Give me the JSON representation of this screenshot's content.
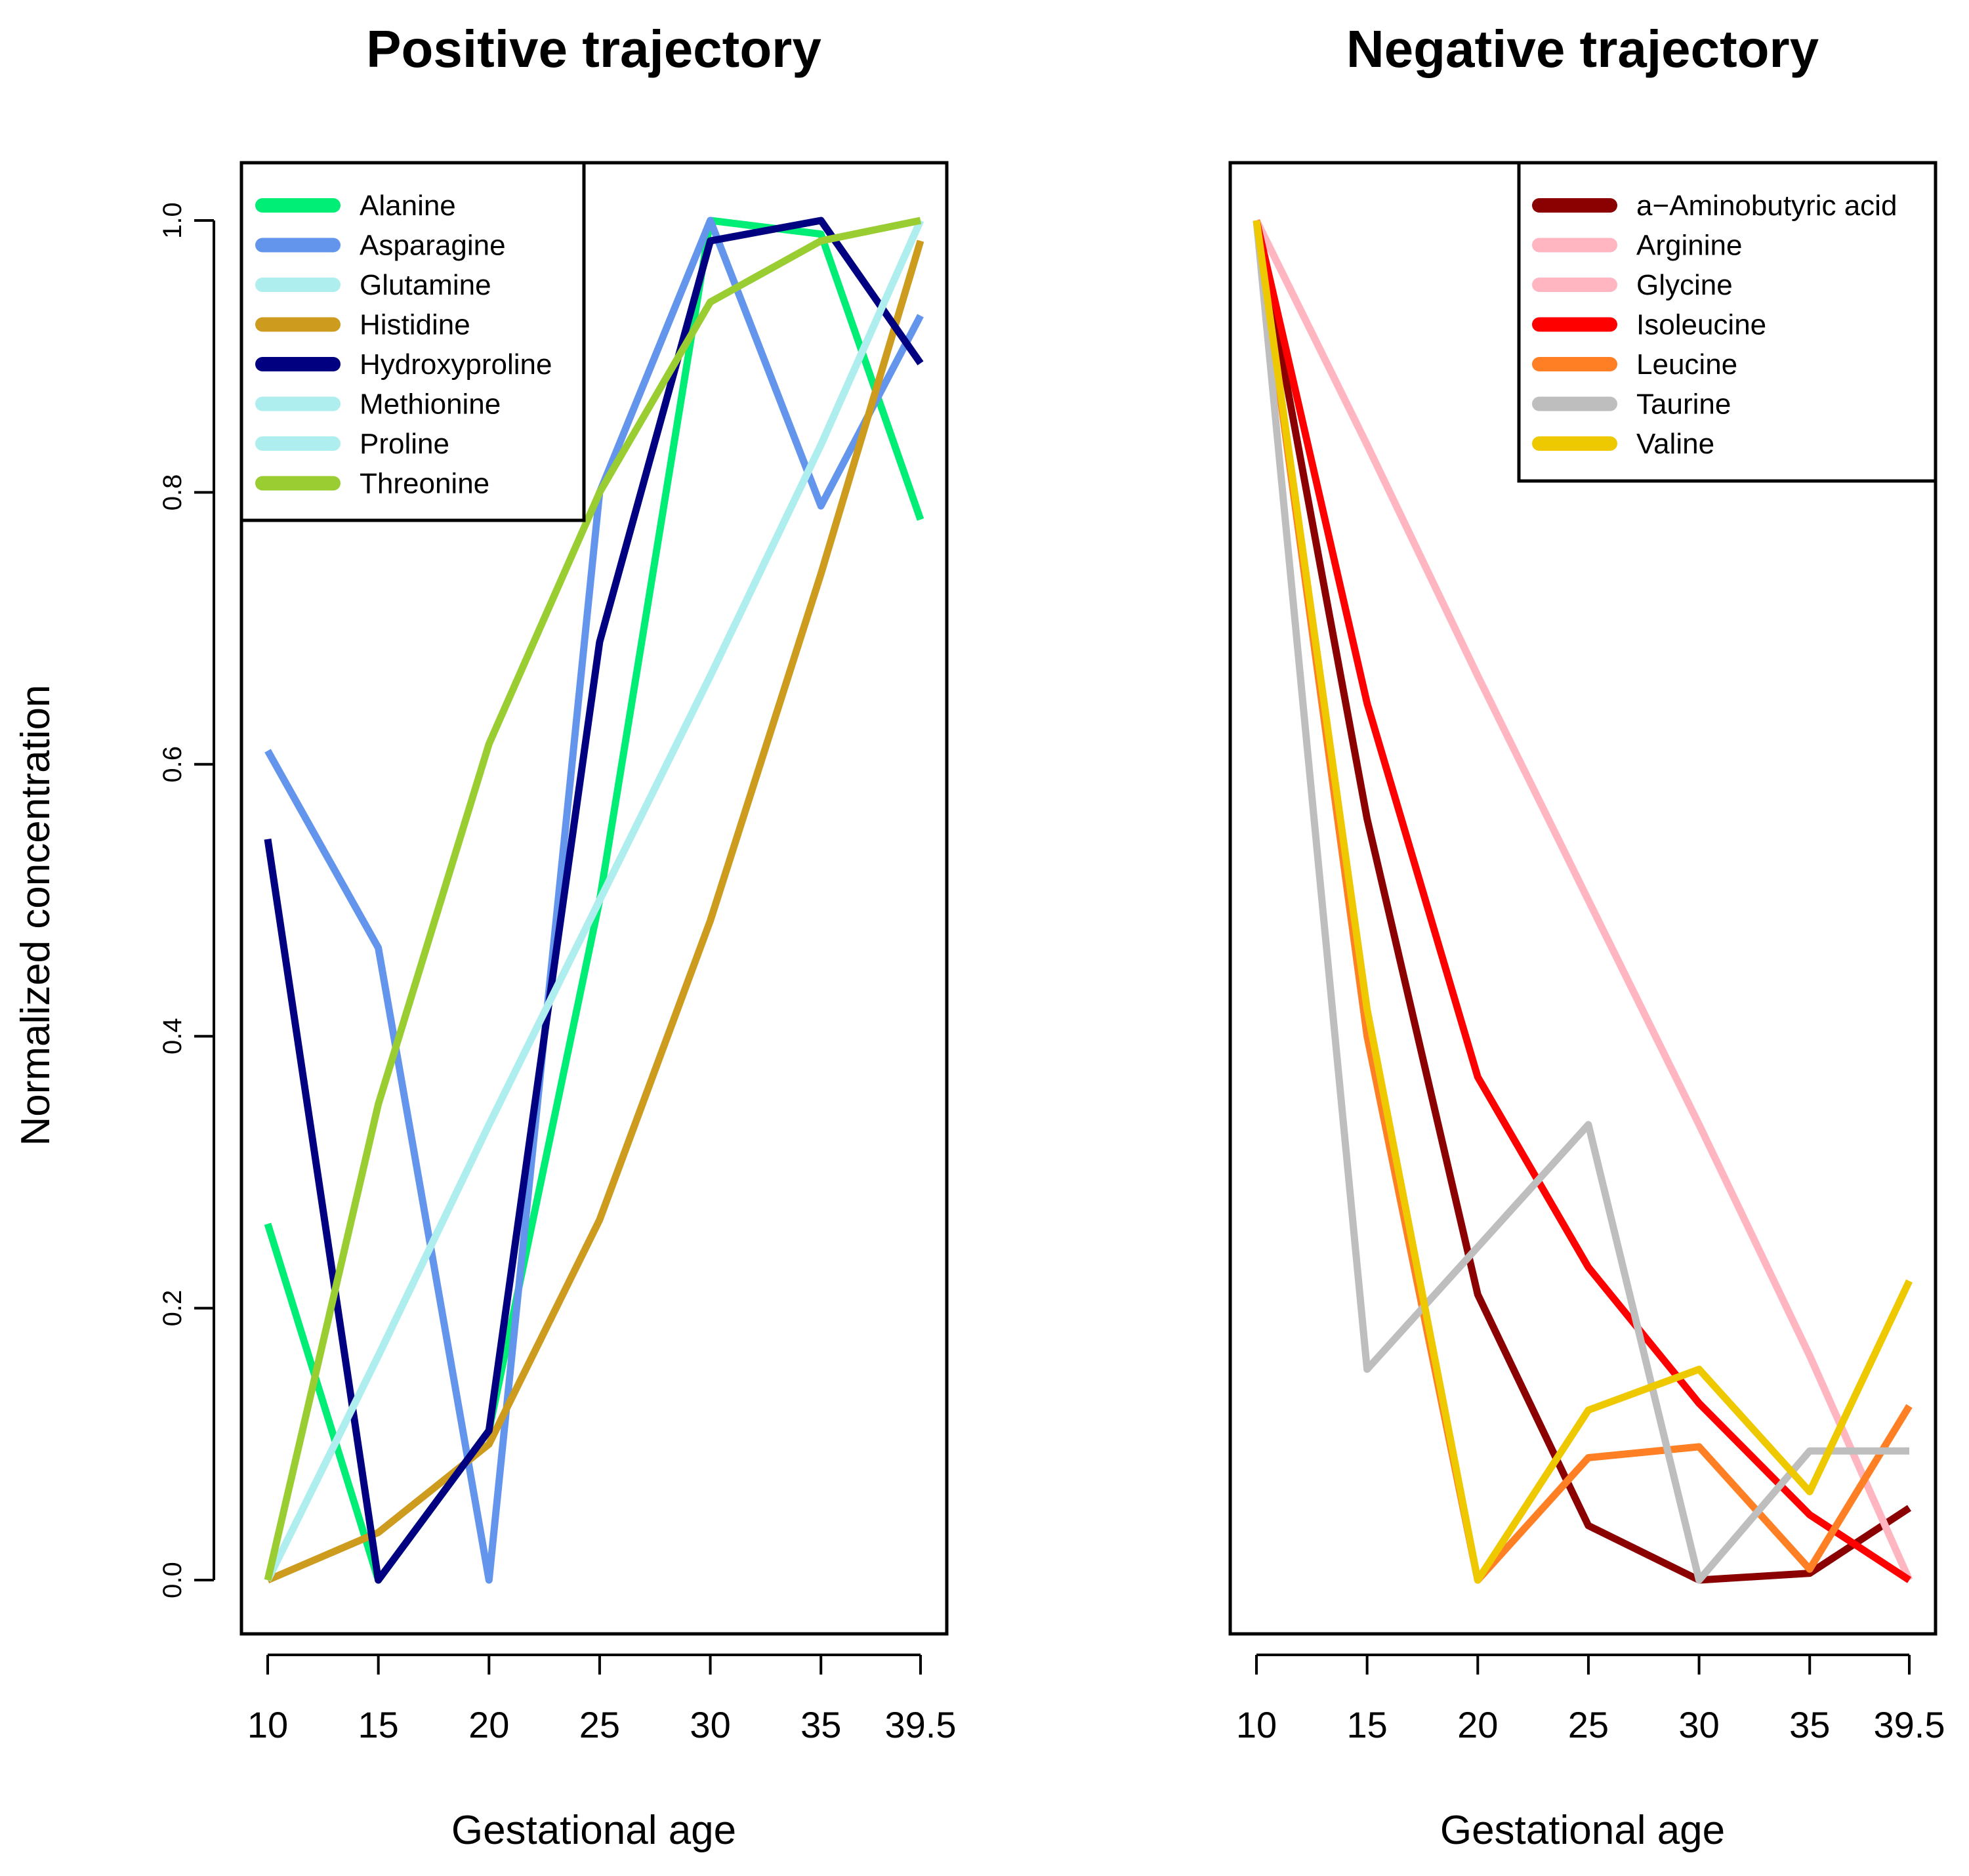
{
  "figure": {
    "ylabel": "Normalized concentration"
  },
  "chart_data": [
    {
      "type": "line",
      "title": "Positive trajectory",
      "xlabel": "Gestational age",
      "ylabel": "Normalized concentration",
      "x": [
        10,
        15,
        20,
        25,
        30,
        35,
        39.5
      ],
      "x_tick_labels": [
        "10",
        "15",
        "20",
        "25",
        "30",
        "35",
        "39.5"
      ],
      "y_ticks": [
        0.0,
        0.2,
        0.4,
        0.6,
        0.8,
        1.0
      ],
      "y_tick_labels": [
        "0.0",
        "0.2",
        "0.4",
        "0.6",
        "0.8",
        "1.0"
      ],
      "ylim": [
        -0.04,
        1.04
      ],
      "grid": false,
      "legend_position": "top-left",
      "series": [
        {
          "name": "Alanine",
          "color": "#00EE76",
          "values": [
            0.262,
            0.0,
            0.11,
            0.5,
            1.0,
            0.99,
            0.78
          ]
        },
        {
          "name": "Asparagine",
          "color": "#6495ED",
          "values": [
            0.61,
            0.465,
            0.0,
            0.8,
            1.0,
            0.79,
            0.93
          ]
        },
        {
          "name": "Glutamine",
          "color": "#AEEEEE",
          "values": [
            0.0,
            0.165,
            0.335,
            0.5,
            0.665,
            0.835,
            1.0
          ]
        },
        {
          "name": "Histidine",
          "color": "#CD9B1D",
          "values": [
            0.0,
            0.035,
            0.1,
            0.265,
            0.485,
            0.74,
            0.985
          ]
        },
        {
          "name": "Hydroxyproline",
          "color": "#000080",
          "values": [
            0.545,
            0.0,
            0.11,
            0.69,
            0.985,
            1.0,
            0.895
          ]
        },
        {
          "name": "Methionine",
          "color": "#AEEEEE",
          "values": [
            0.0,
            0.165,
            0.335,
            0.5,
            0.665,
            0.835,
            1.0
          ]
        },
        {
          "name": "Proline",
          "color": "#AEEEEE",
          "values": [
            0.0,
            0.165,
            0.335,
            0.5,
            0.665,
            0.835,
            1.0
          ]
        },
        {
          "name": "Threonine",
          "color": "#9ACD32",
          "values": [
            0.0,
            0.35,
            0.615,
            0.8,
            0.94,
            0.985,
            1.0
          ]
        }
      ]
    },
    {
      "type": "line",
      "title": "Negative trajectory",
      "xlabel": "Gestational age",
      "ylabel": "",
      "x": [
        10,
        15,
        20,
        25,
        30,
        35,
        39.5
      ],
      "x_tick_labels": [
        "10",
        "15",
        "20",
        "25",
        "30",
        "35",
        "39.5"
      ],
      "y_ticks": [],
      "y_tick_labels": [],
      "ylim": [
        -0.04,
        1.04
      ],
      "grid": false,
      "legend_position": "top-right",
      "series": [
        {
          "name": "a−Aminobutyric acid",
          "color": "#8B0000",
          "values": [
            1.0,
            0.56,
            0.21,
            0.04,
            0.0,
            0.005,
            0.053
          ]
        },
        {
          "name": "Arginine",
          "color": "#FFB6C1",
          "values": [
            1.0,
            0.835,
            0.665,
            0.5,
            0.335,
            0.165,
            0.0
          ]
        },
        {
          "name": "Glycine",
          "color": "#FFB6C1",
          "values": [
            1.0,
            0.835,
            0.665,
            0.5,
            0.335,
            0.165,
            0.0
          ]
        },
        {
          "name": "Isoleucine",
          "color": "#FF0000",
          "values": [
            1.0,
            0.645,
            0.37,
            0.23,
            0.13,
            0.048,
            0.0
          ]
        },
        {
          "name": "Leucine",
          "color": "#FF7F24",
          "values": [
            1.0,
            0.4,
            0.0,
            0.09,
            0.098,
            0.008,
            0.128
          ]
        },
        {
          "name": "Taurine",
          "color": "#BEBEBE",
          "values": [
            1.0,
            0.155,
            0.245,
            0.335,
            0.0,
            0.095,
            0.095
          ]
        },
        {
          "name": "Valine",
          "color": "#EEC900",
          "values": [
            1.0,
            0.42,
            0.0,
            0.125,
            0.155,
            0.065,
            0.22
          ]
        }
      ]
    }
  ]
}
